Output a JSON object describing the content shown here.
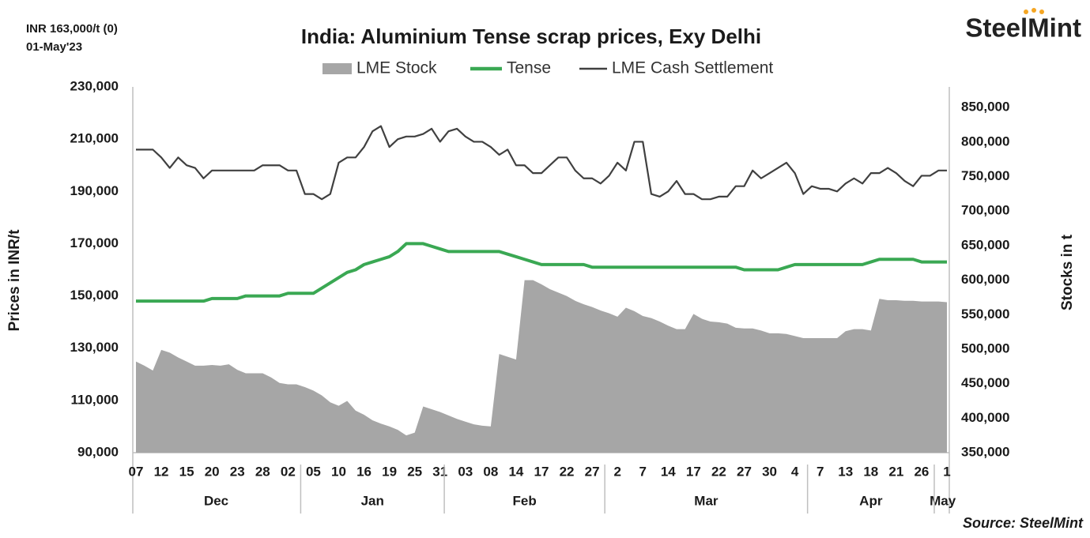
{
  "chart_data": {
    "type": "combo",
    "title": "India: Aluminium Tense scrap prices, Exy Delhi",
    "annotations": [
      "INR 163,000/t (0)",
      "01-May'23"
    ],
    "logo": "SteelMint",
    "source": "Source: SteelMint",
    "y_label": "Prices in INR/t",
    "y2_label": "Stocks in t",
    "categories": [
      "07",
      null,
      null,
      "12",
      null,
      null,
      "15",
      null,
      null,
      "20",
      null,
      null,
      "23",
      null,
      null,
      "28",
      null,
      null,
      "02",
      null,
      null,
      "05",
      null,
      null,
      "10",
      null,
      null,
      "16",
      null,
      null,
      "19",
      null,
      null,
      "25",
      null,
      null,
      "31",
      null,
      null,
      "03",
      null,
      null,
      "08",
      null,
      null,
      "14",
      null,
      null,
      "17",
      null,
      null,
      "22",
      null,
      null,
      "27",
      null,
      null,
      "2",
      null,
      null,
      "7",
      null,
      null,
      "14",
      null,
      null,
      "17",
      null,
      null,
      "22",
      null,
      null,
      "27",
      null,
      null,
      "30",
      null,
      null,
      "4",
      null,
      null,
      "7",
      null,
      null,
      "13",
      null,
      null,
      "18",
      null,
      null,
      "21",
      null,
      null,
      "26",
      null,
      null,
      "1"
    ],
    "x_groups": [
      {
        "label": "Dec",
        "count": 20
      },
      {
        "label": "Jan",
        "count": 17
      },
      {
        "label": "Feb",
        "count": 19
      },
      {
        "label": "Mar",
        "count": 24
      },
      {
        "label": "Apr",
        "count": 15
      },
      {
        "label": "May",
        "count": 2
      }
    ],
    "series": [
      {
        "name": "LME Stock",
        "type": "area",
        "axis": "y2",
        "color": "#a6a6a6",
        "values": [
          482000,
          476000,
          469000,
          499000,
          495000,
          488000,
          482000,
          476000,
          476000,
          477000,
          476000,
          478000,
          470000,
          465000,
          465000,
          465000,
          459000,
          451000,
          449000,
          449000,
          445000,
          440000,
          433000,
          423000,
          418000,
          425000,
          411000,
          405000,
          397000,
          392000,
          388000,
          383000,
          375000,
          379000,
          417000,
          413000,
          409000,
          404000,
          399000,
          395000,
          391000,
          389000,
          388000,
          493000,
          489000,
          485000,
          600000,
          600000,
          594000,
          587000,
          582000,
          577000,
          570000,
          565000,
          561000,
          556000,
          552000,
          547000,
          560000,
          555000,
          548000,
          545000,
          540000,
          534000,
          529000,
          529000,
          551000,
          544000,
          540000,
          539000,
          537000,
          531000,
          530000,
          530000,
          527000,
          523000,
          523000,
          522000,
          519000,
          516000,
          516000,
          516000,
          516000,
          516000,
          526000,
          529000,
          529000,
          527000,
          573000,
          571000,
          571000,
          570000,
          570000,
          569000,
          569000,
          569000,
          568000
        ]
      },
      {
        "name": "Tense",
        "type": "line",
        "axis": "y",
        "color": "#3aa853",
        "values": [
          148000,
          148000,
          148000,
          148000,
          148000,
          148000,
          148000,
          148000,
          148000,
          149000,
          149000,
          149000,
          149000,
          150000,
          150000,
          150000,
          150000,
          150000,
          151000,
          151000,
          151000,
          151000,
          153000,
          155000,
          157000,
          159000,
          160000,
          162000,
          163000,
          164000,
          165000,
          167000,
          170000,
          170000,
          170000,
          169000,
          168000,
          167000,
          167000,
          167000,
          167000,
          167000,
          167000,
          167000,
          166000,
          165000,
          164000,
          163000,
          162000,
          162000,
          162000,
          162000,
          162000,
          162000,
          161000,
          161000,
          161000,
          161000,
          161000,
          161000,
          161000,
          161000,
          161000,
          161000,
          161000,
          161000,
          161000,
          161000,
          161000,
          161000,
          161000,
          161000,
          160000,
          160000,
          160000,
          160000,
          160000,
          161000,
          162000,
          162000,
          162000,
          162000,
          162000,
          162000,
          162000,
          162000,
          162000,
          163000,
          164000,
          164000,
          164000,
          164000,
          164000,
          163000,
          163000,
          163000,
          163000
        ]
      },
      {
        "name": "LME Cash Settlement",
        "type": "line",
        "axis": "y",
        "color": "#404040",
        "values": [
          206000,
          206000,
          206000,
          203000,
          199000,
          203000,
          200000,
          199000,
          195000,
          198000,
          198000,
          198000,
          198000,
          198000,
          198000,
          200000,
          200000,
          200000,
          198000,
          198000,
          189000,
          189000,
          187000,
          189000,
          201000,
          203000,
          203000,
          207000,
          213000,
          215000,
          207000,
          210000,
          211000,
          211000,
          212000,
          214000,
          209000,
          213000,
          214000,
          211000,
          209000,
          209000,
          207000,
          204000,
          206000,
          200000,
          200000,
          197000,
          197000,
          200000,
          203000,
          203000,
          198000,
          195000,
          195000,
          193000,
          196000,
          201000,
          198000,
          209000,
          209000,
          189000,
          188000,
          190000,
          194000,
          189000,
          189000,
          187000,
          187000,
          188000,
          188000,
          192000,
          192000,
          198000,
          195000,
          197000,
          199000,
          201000,
          197000,
          189000,
          192000,
          191000,
          191000,
          190000,
          193000,
          195000,
          193000,
          197000,
          197000,
          199000,
          197000,
          194000,
          192000,
          196000,
          196000,
          198000,
          198000
        ]
      }
    ],
    "ylim": [
      90000,
      230000
    ],
    "yticks": [
      {
        "value": 90000,
        "label": "90,000"
      },
      {
        "value": 110000,
        "label": "110,000"
      },
      {
        "value": 130000,
        "label": "130,000"
      },
      {
        "value": 150000,
        "label": "150,000"
      },
      {
        "value": 170000,
        "label": "170,000"
      },
      {
        "value": 190000,
        "label": "190,000"
      },
      {
        "value": 210000,
        "label": "210,000"
      },
      {
        "value": 230000,
        "label": "230,000"
      }
    ],
    "y2lim": [
      350000,
      880000
    ],
    "y2ticks": [
      {
        "value": 350000,
        "label": "350,000"
      },
      {
        "value": 400000,
        "label": "400,000"
      },
      {
        "value": 450000,
        "label": "450,000"
      },
      {
        "value": 500000,
        "label": "500,000"
      },
      {
        "value": 550000,
        "label": "550,000"
      },
      {
        "value": 600000,
        "label": "600,000"
      },
      {
        "value": 650000,
        "label": "650,000"
      },
      {
        "value": 700000,
        "label": "700,000"
      },
      {
        "value": 750000,
        "label": "750,000"
      },
      {
        "value": 800000,
        "label": "800,000"
      },
      {
        "value": 850000,
        "label": "850,000"
      }
    ],
    "grid": false,
    "legend": "top"
  }
}
